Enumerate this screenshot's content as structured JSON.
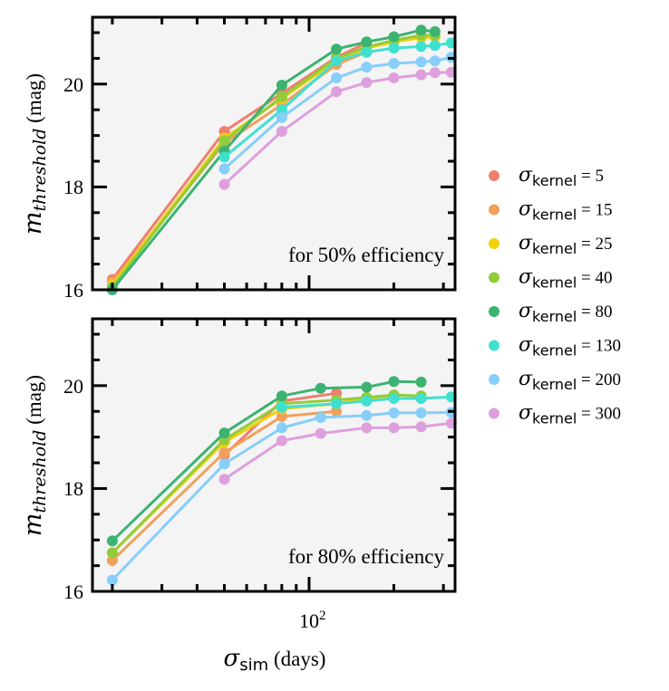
{
  "chart_data": [
    {
      "type": "line",
      "annotation": "for 50% efficiency",
      "ylabel_symbol": "m",
      "ylabel_subscript": "threshold",
      "ylabel_unit": " (mag)",
      "xscale": "log",
      "xlim": [
        17,
        330
      ],
      "ylim": [
        16,
        21.3
      ],
      "yticks": [
        "16",
        "18",
        "20"
      ],
      "grid": false,
      "series": [
        {
          "name": "σkernel = 5",
          "color": "#f07e6e",
          "x": [
            20,
            50,
            80,
            125,
            160
          ],
          "y": [
            16.2,
            19.08,
            19.82,
            20.52,
            20.8
          ]
        },
        {
          "name": "σkernel = 15",
          "color": "#efa15b",
          "x": [
            20,
            50,
            80,
            125,
            160
          ],
          "y": [
            16.15,
            18.85,
            19.6,
            20.38,
            20.62
          ]
        },
        {
          "name": "σkernel = 25",
          "color": "#f3d00c",
          "x": [
            20,
            50,
            80,
            125,
            160,
            200,
            250,
            280
          ],
          "y": [
            16.1,
            18.95,
            19.72,
            20.45,
            20.7,
            20.82,
            20.9,
            20.92
          ]
        },
        {
          "name": "σkernel = 40",
          "color": "#93cc3a",
          "x": [
            20,
            50,
            80,
            125,
            160,
            200,
            250,
            280
          ],
          "y": [
            16.05,
            18.9,
            19.75,
            20.5,
            20.72,
            20.85,
            20.95,
            20.95
          ]
        },
        {
          "name": "σkernel = 80",
          "color": "#3cb371",
          "x": [
            20,
            50,
            80,
            125,
            160,
            200,
            250,
            280
          ],
          "y": [
            16.0,
            18.7,
            19.98,
            20.68,
            20.82,
            20.92,
            21.05,
            21.02
          ]
        },
        {
          "name": "σkernel = 130",
          "color": "#40e0d0",
          "x": [
            50,
            80,
            125,
            160,
            200,
            250,
            280,
            320
          ],
          "y": [
            18.58,
            19.5,
            20.45,
            20.62,
            20.7,
            20.73,
            20.75,
            20.8
          ]
        },
        {
          "name": "σkernel = 200",
          "color": "#87cefa",
          "x": [
            50,
            80,
            125,
            160,
            200,
            250,
            280,
            320
          ],
          "y": [
            18.35,
            19.35,
            20.12,
            20.33,
            20.4,
            20.43,
            20.45,
            20.52
          ]
        },
        {
          "name": "σkernel = 300",
          "color": "#dda0dd",
          "x": [
            50,
            80,
            125,
            160,
            200,
            250,
            280,
            320
          ],
          "y": [
            18.05,
            19.08,
            19.85,
            20.03,
            20.12,
            20.18,
            20.22,
            20.23
          ]
        }
      ]
    },
    {
      "type": "line",
      "annotation": "for 80% efficiency",
      "ylabel_symbol": "m",
      "ylabel_subscript": "threshold",
      "ylabel_unit": " (mag)",
      "xlabel_symbol": "σ",
      "xlabel_subscript": "sim",
      "xlabel_unit": " (days)",
      "xscale": "log",
      "xlim": [
        17,
        330
      ],
      "ylim": [
        16,
        21.3
      ],
      "yticks": [
        "16",
        "18",
        "20"
      ],
      "xtick_base": "10",
      "xtick_exp": "2",
      "grid": false,
      "series": [
        {
          "name": "σkernel = 5",
          "color": "#f07e6e",
          "x": [
            50,
            80,
            125
          ],
          "y": [
            18.65,
            19.7,
            19.85
          ]
        },
        {
          "name": "σkernel = 15",
          "color": "#efa15b",
          "x": [
            20,
            50,
            80,
            125
          ],
          "y": [
            16.6,
            18.7,
            19.4,
            19.5
          ]
        },
        {
          "name": "σkernel = 25",
          "color": "#f3d00c",
          "x": [
            20,
            50,
            80,
            125,
            160,
            200
          ],
          "y": [
            16.75,
            18.9,
            19.55,
            19.65,
            19.75,
            19.78
          ]
        },
        {
          "name": "σkernel = 40",
          "color": "#93cc3a",
          "x": [
            20,
            50,
            80,
            125,
            160,
            200,
            250
          ],
          "y": [
            16.75,
            18.95,
            19.65,
            19.72,
            19.77,
            19.82,
            19.8
          ]
        },
        {
          "name": "σkernel = 80",
          "color": "#3cb371",
          "x": [
            20,
            50,
            80,
            110,
            160,
            200,
            250
          ],
          "y": [
            16.98,
            19.08,
            19.8,
            19.95,
            19.97,
            20.08,
            20.07
          ]
        },
        {
          "name": "σkernel = 130",
          "color": "#40e0d0",
          "x": [
            80,
            125,
            160,
            200,
            250,
            320
          ],
          "y": [
            19.58,
            19.65,
            19.7,
            19.75,
            19.75,
            19.78
          ]
        },
        {
          "name": "σkernel = 200",
          "color": "#87cefa",
          "x": [
            20,
            50,
            80,
            110,
            160,
            200,
            250,
            320
          ],
          "y": [
            16.22,
            18.48,
            19.18,
            19.38,
            19.42,
            19.47,
            19.47,
            19.48
          ]
        },
        {
          "name": "σkernel = 300",
          "color": "#dda0dd",
          "x": [
            50,
            80,
            110,
            160,
            200,
            250,
            320
          ],
          "y": [
            18.18,
            18.93,
            19.07,
            19.18,
            19.18,
            19.2,
            19.27
          ]
        }
      ]
    }
  ],
  "legend": {
    "placement": "right",
    "symbol": "σ",
    "subscript": "kernel",
    "entries": [
      {
        "value": " = 5",
        "color": "#f07e6e"
      },
      {
        "value": " = 15",
        "color": "#efa15b"
      },
      {
        "value": " = 25",
        "color": "#f3d00c"
      },
      {
        "value": " = 40",
        "color": "#93cc3a"
      },
      {
        "value": " = 80",
        "color": "#3cb371"
      },
      {
        "value": " = 130",
        "color": "#40e0d0"
      },
      {
        "value": " = 200",
        "color": "#87cefa"
      },
      {
        "value": " = 300",
        "color": "#dda0dd"
      }
    ]
  },
  "colors": {
    "plot_background": "#f4f4f4",
    "axes": "#000000"
  }
}
